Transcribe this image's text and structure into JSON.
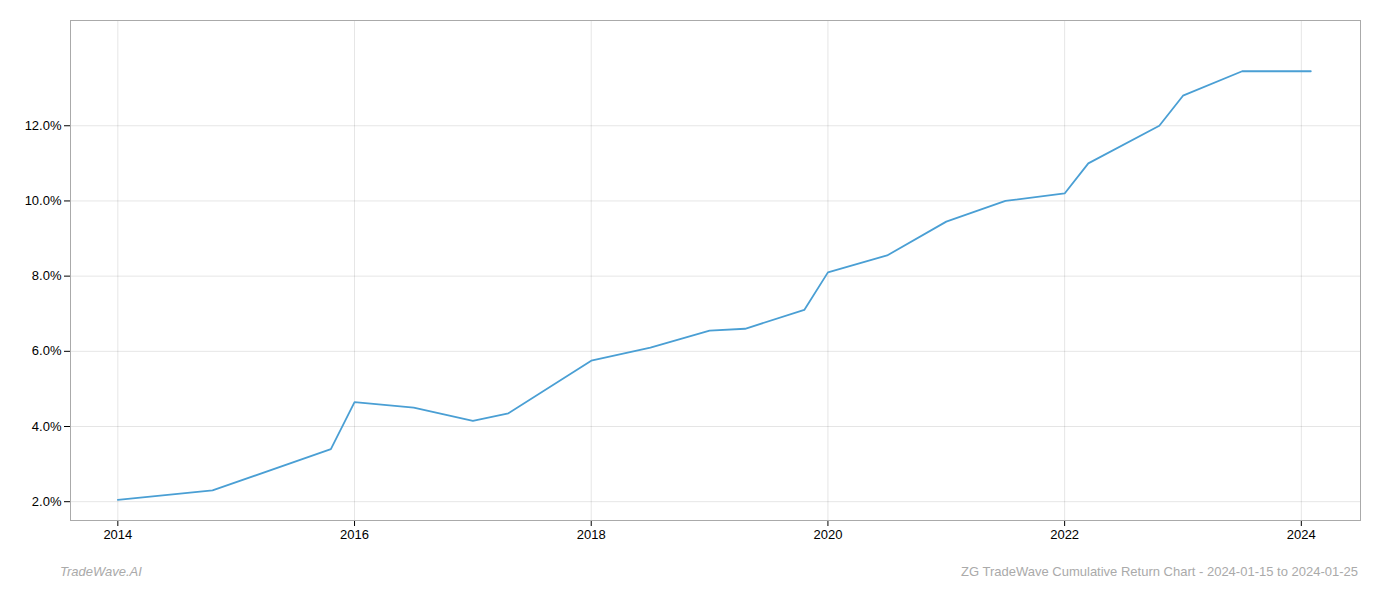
{
  "chart_data": {
    "type": "line",
    "x": [
      2014.0,
      2014.8,
      2015.8,
      2016.0,
      2016.5,
      2017.0,
      2017.3,
      2018.0,
      2018.5,
      2019.0,
      2019.3,
      2019.8,
      2020.0,
      2020.5,
      2021.0,
      2021.5,
      2022.0,
      2022.2,
      2022.8,
      2023.0,
      2023.5,
      2024.0,
      2024.08
    ],
    "values": [
      2.05,
      2.3,
      3.4,
      4.65,
      4.5,
      4.15,
      4.35,
      5.75,
      6.1,
      6.55,
      6.6,
      7.1,
      8.1,
      8.55,
      9.45,
      10.0,
      10.2,
      11.0,
      12.0,
      12.8,
      13.45,
      13.45,
      13.45
    ],
    "color": "#4a9fd4",
    "xlim": [
      2013.6,
      2024.5
    ],
    "ylim": [
      1.5,
      14.8
    ],
    "xticks": [
      2014,
      2016,
      2018,
      2020,
      2022,
      2024
    ],
    "yticks": [
      {
        "value": 2.0,
        "label": "2.0%"
      },
      {
        "value": 4.0,
        "label": "4.0%"
      },
      {
        "value": 6.0,
        "label": "6.0%"
      },
      {
        "value": 8.0,
        "label": "8.0%"
      },
      {
        "value": 10.0,
        "label": "10.0%"
      },
      {
        "value": 12.0,
        "label": "12.0%"
      }
    ],
    "grid": true,
    "annotations": [
      "TradeWave.AI",
      "ZG TradeWave Cumulative Return Chart - 2024-01-15 to 2024-01-25"
    ]
  }
}
